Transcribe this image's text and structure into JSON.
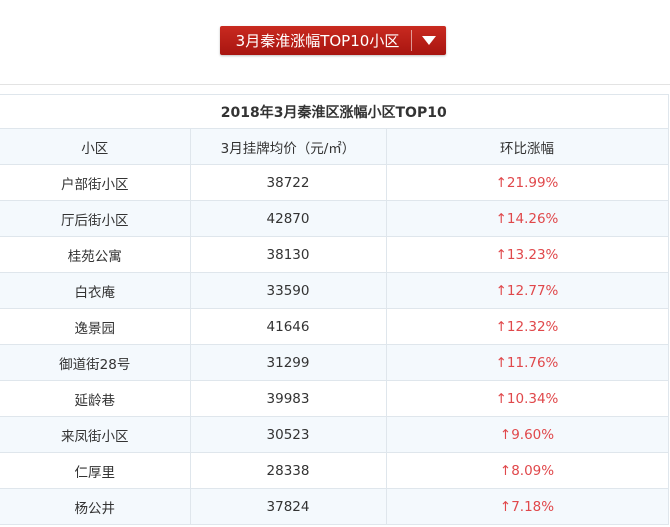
{
  "selector": {
    "label": "3月秦淮涨幅TOP10小区",
    "icon": "caret-down-icon"
  },
  "table": {
    "title": "2018年3月秦淮区涨幅小区TOP10",
    "headers": [
      "小区",
      "3月挂牌均价（元/㎡）",
      "环比涨幅"
    ],
    "rise_symbol": "↑",
    "rows": [
      {
        "name": "户部街小区",
        "price": "38722",
        "change": "↑21.99%"
      },
      {
        "name": "厅后街小区",
        "price": "42870",
        "change": "↑14.26%"
      },
      {
        "name": "桂苑公寓",
        "price": "38130",
        "change": "↑13.23%"
      },
      {
        "name": "白衣庵",
        "price": "33590",
        "change": "↑12.77%"
      },
      {
        "name": "逸景园",
        "price": "41646",
        "change": "↑12.32%"
      },
      {
        "name": "御道街28号",
        "price": "31299",
        "change": "↑11.76%"
      },
      {
        "name": "延龄巷",
        "price": "39983",
        "change": "↑10.34%"
      },
      {
        "name": "来凤街小区",
        "price": "30523",
        "change": "↑9.60%"
      },
      {
        "name": "仁厚里",
        "price": "28338",
        "change": "↑8.09%"
      },
      {
        "name": "杨公井",
        "price": "37824",
        "change": "↑7.18%"
      }
    ]
  },
  "colors": {
    "accent_red": "#b51c15",
    "rise_red": "#e0484b",
    "row_alt_bg": "#f4f9fd"
  }
}
